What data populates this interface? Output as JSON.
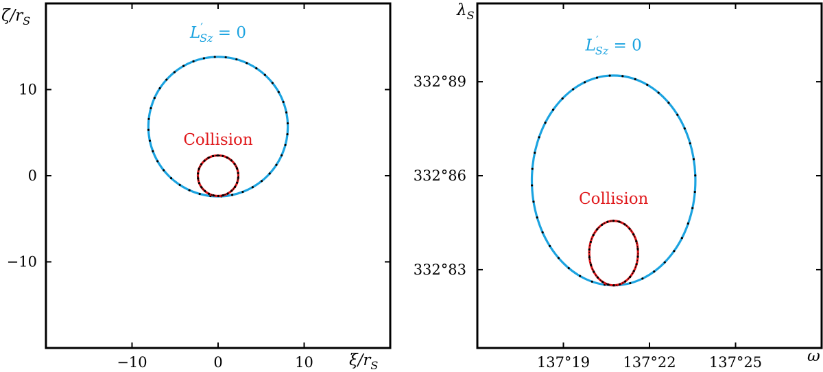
{
  "chart_data": [
    {
      "type": "line",
      "title": "",
      "xlabel": "ξ/r",
      "xlabel_sub": "S",
      "ylabel": "ζ/r",
      "ylabel_sub": "S",
      "xlim": [
        -20,
        20
      ],
      "ylim": [
        -20,
        20
      ],
      "xticks": [
        -10,
        0,
        10
      ],
      "xtick_labels": [
        "−10",
        "0",
        "10"
      ],
      "yticks": [
        10,
        0,
        -10
      ],
      "ytick_labels": [
        "10",
        "0",
        "−10"
      ],
      "grid": false,
      "series": [
        {
          "key": "ls",
          "color": "#1ba3e0",
          "cx": 0,
          "cy": 5.7,
          "rx": 8.1,
          "ry": 8.1
        },
        {
          "key": "col",
          "color": "#e0191c",
          "cx": 0,
          "cy": 0,
          "rx": 2.35,
          "ry": 2.35
        }
      ],
      "annotations": {
        "ls_label": {
          "main": "L",
          "sup": "′",
          "sub": "Sz",
          "rest": " = 0",
          "color": "#1ba3e0",
          "at": [
            0,
            16
          ]
        },
        "col_label": {
          "text": "Collision",
          "color": "#e0191c",
          "at": [
            0,
            3.6
          ]
        }
      }
    },
    {
      "type": "line",
      "title": "",
      "xlabel": "ω",
      "xlabel_sub": "",
      "ylabel": "λ",
      "ylabel_sub": "S",
      "xlim": [
        137.16,
        137.28
      ],
      "ylim": [
        332.805,
        332.915
      ],
      "xticks": [
        137.19,
        137.22,
        137.25
      ],
      "xtick_labels": [
        "137°19",
        "137°22",
        "137°25"
      ],
      "yticks": [
        332.89,
        332.86,
        332.83
      ],
      "ytick_labels": [
        "332°89",
        "332°86",
        "332°83"
      ],
      "grid": false,
      "series": [
        {
          "key": "ls",
          "color": "#1ba3e0",
          "cx": 137.2075,
          "cy": 332.8585,
          "rx": 0.0285,
          "ry": 0.0335
        },
        {
          "key": "col",
          "color": "#e0191c",
          "cx": 137.2075,
          "cy": 332.8353,
          "rx": 0.0085,
          "ry": 0.0103
        }
      ],
      "annotations": {
        "ls_label": {
          "main": "L",
          "sup": "′",
          "sub": "Sz",
          "rest": " = 0",
          "color": "#1ba3e0",
          "at": [
            137.2075,
            332.9
          ]
        },
        "col_label": {
          "text": "Collision",
          "color": "#e0191c",
          "at": [
            137.2075,
            332.851
          ]
        }
      }
    }
  ]
}
